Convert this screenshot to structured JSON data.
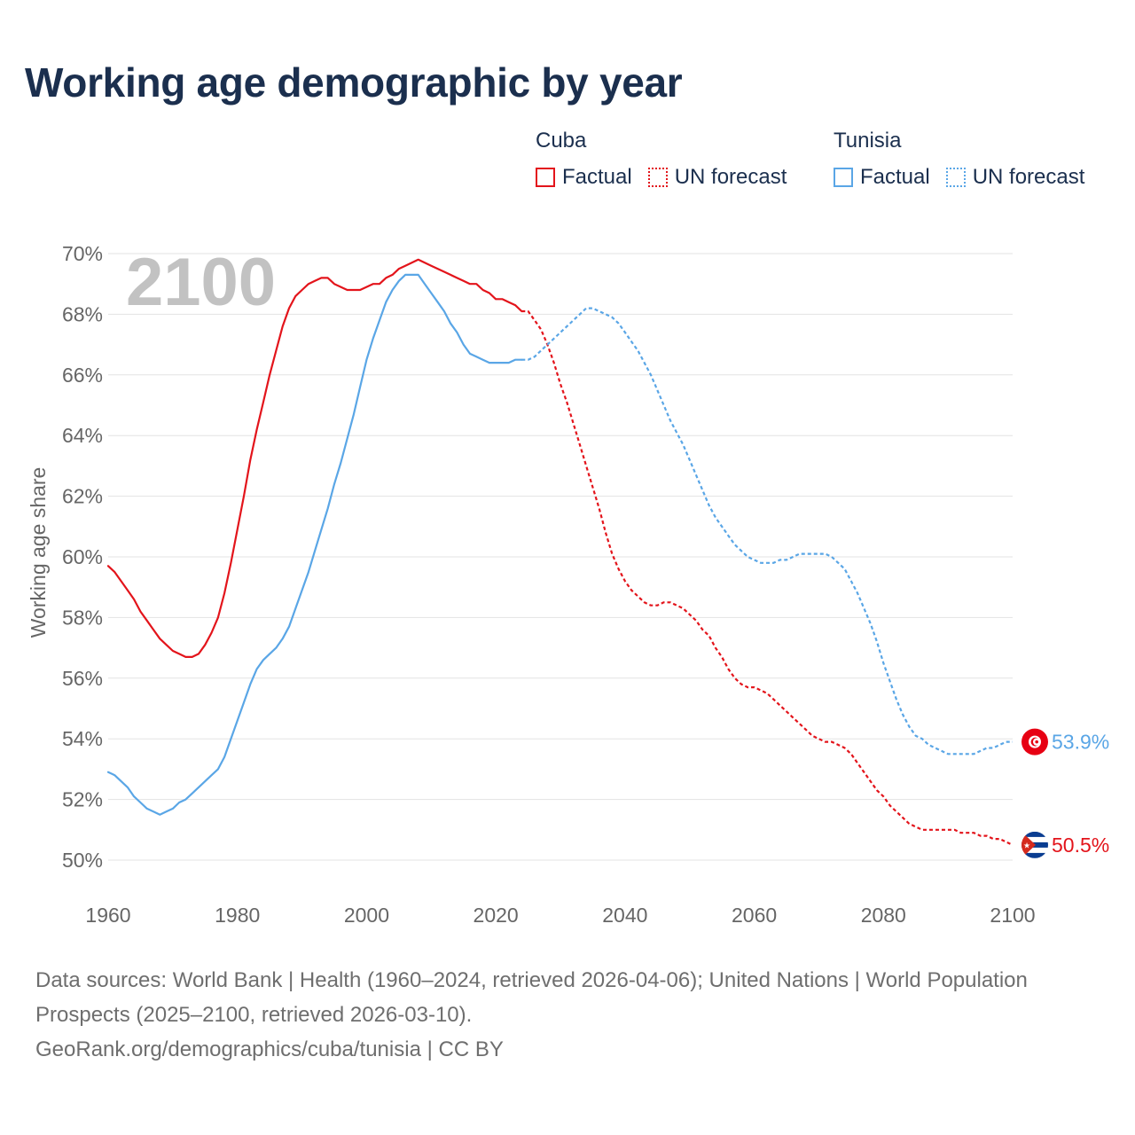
{
  "title": "Working age demographic by year",
  "legend": {
    "groups": [
      {
        "country": "Cuba",
        "color": "#e3141b",
        "factual": "Factual",
        "forecast": "UN forecast"
      },
      {
        "country": "Tunisia",
        "color": "#5aa6e6",
        "factual": "Factual",
        "forecast": "UN forecast"
      }
    ]
  },
  "year_watermark": "2100",
  "footer": {
    "line1": "Data sources: World Bank | Health (1960–2024, retrieved 2026-04-06); United Nations | World Population Prospects (2025–2100, retrieved 2026-03-10).",
    "line2": "GeoRank.org/demographics/cuba/tunisia | CC BY"
  },
  "chart_data": {
    "type": "line",
    "title": "Working age demographic by year",
    "xlabel": "",
    "ylabel": "Working age share",
    "xlim": [
      1960,
      2100
    ],
    "ylim": [
      50,
      70
    ],
    "x_ticks": [
      1960,
      1980,
      2000,
      2020,
      2040,
      2060,
      2080,
      2100
    ],
    "y_ticks": [
      50,
      52,
      54,
      56,
      58,
      60,
      62,
      64,
      66,
      68,
      70
    ],
    "y_tick_labels": [
      "50%",
      "52%",
      "54%",
      "56%",
      "58%",
      "60%",
      "62%",
      "64%",
      "66%",
      "68%",
      "70%"
    ],
    "grid": true,
    "series": [
      {
        "name": "Cuba",
        "segment": "Factual",
        "color": "#e3141b",
        "style": "solid",
        "points": [
          [
            1960,
            59.7
          ],
          [
            1961,
            59.5
          ],
          [
            1962,
            59.2
          ],
          [
            1963,
            58.9
          ],
          [
            1964,
            58.6
          ],
          [
            1965,
            58.2
          ],
          [
            1966,
            57.9
          ],
          [
            1967,
            57.6
          ],
          [
            1968,
            57.3
          ],
          [
            1969,
            57.1
          ],
          [
            1970,
            56.9
          ],
          [
            1971,
            56.8
          ],
          [
            1972,
            56.7
          ],
          [
            1973,
            56.7
          ],
          [
            1974,
            56.8
          ],
          [
            1975,
            57.1
          ],
          [
            1976,
            57.5
          ],
          [
            1977,
            58.0
          ],
          [
            1978,
            58.8
          ],
          [
            1979,
            59.8
          ],
          [
            1980,
            60.9
          ],
          [
            1981,
            62.0
          ],
          [
            1982,
            63.2
          ],
          [
            1983,
            64.2
          ],
          [
            1984,
            65.1
          ],
          [
            1985,
            66.0
          ],
          [
            1986,
            66.8
          ],
          [
            1987,
            67.6
          ],
          [
            1988,
            68.2
          ],
          [
            1989,
            68.6
          ],
          [
            1990,
            68.8
          ],
          [
            1991,
            69.0
          ],
          [
            1992,
            69.1
          ],
          [
            1993,
            69.2
          ],
          [
            1994,
            69.2
          ],
          [
            1995,
            69.0
          ],
          [
            1996,
            68.9
          ],
          [
            1997,
            68.8
          ],
          [
            1998,
            68.8
          ],
          [
            1999,
            68.8
          ],
          [
            2000,
            68.9
          ],
          [
            2001,
            69.0
          ],
          [
            2002,
            69.0
          ],
          [
            2003,
            69.2
          ],
          [
            2004,
            69.3
          ],
          [
            2005,
            69.5
          ],
          [
            2006,
            69.6
          ],
          [
            2007,
            69.7
          ],
          [
            2008,
            69.8
          ],
          [
            2009,
            69.7
          ],
          [
            2010,
            69.6
          ],
          [
            2011,
            69.5
          ],
          [
            2012,
            69.4
          ],
          [
            2013,
            69.3
          ],
          [
            2014,
            69.2
          ],
          [
            2015,
            69.1
          ],
          [
            2016,
            69.0
          ],
          [
            2017,
            69.0
          ],
          [
            2018,
            68.8
          ],
          [
            2019,
            68.7
          ],
          [
            2020,
            68.5
          ],
          [
            2021,
            68.5
          ],
          [
            2022,
            68.4
          ],
          [
            2023,
            68.3
          ],
          [
            2024,
            68.1
          ]
        ]
      },
      {
        "name": "Cuba",
        "segment": "UN forecast",
        "color": "#e3141b",
        "style": "dotted",
        "points": [
          [
            2024,
            68.1
          ],
          [
            2025,
            68.1
          ],
          [
            2026,
            67.8
          ],
          [
            2027,
            67.5
          ],
          [
            2028,
            67.0
          ],
          [
            2029,
            66.4
          ],
          [
            2030,
            65.7
          ],
          [
            2031,
            65.1
          ],
          [
            2032,
            64.4
          ],
          [
            2033,
            63.7
          ],
          [
            2034,
            63.0
          ],
          [
            2035,
            62.3
          ],
          [
            2036,
            61.6
          ],
          [
            2037,
            60.8
          ],
          [
            2038,
            60.1
          ],
          [
            2039,
            59.6
          ],
          [
            2040,
            59.2
          ],
          [
            2041,
            58.9
          ],
          [
            2042,
            58.7
          ],
          [
            2043,
            58.5
          ],
          [
            2044,
            58.4
          ],
          [
            2045,
            58.4
          ],
          [
            2046,
            58.5
          ],
          [
            2047,
            58.5
          ],
          [
            2048,
            58.4
          ],
          [
            2049,
            58.3
          ],
          [
            2050,
            58.1
          ],
          [
            2051,
            57.9
          ],
          [
            2052,
            57.6
          ],
          [
            2053,
            57.4
          ],
          [
            2054,
            57.0
          ],
          [
            2055,
            56.7
          ],
          [
            2056,
            56.3
          ],
          [
            2057,
            56.0
          ],
          [
            2058,
            55.8
          ],
          [
            2059,
            55.7
          ],
          [
            2060,
            55.7
          ],
          [
            2061,
            55.6
          ],
          [
            2062,
            55.5
          ],
          [
            2063,
            55.3
          ],
          [
            2064,
            55.1
          ],
          [
            2065,
            54.9
          ],
          [
            2066,
            54.7
          ],
          [
            2067,
            54.5
          ],
          [
            2068,
            54.3
          ],
          [
            2069,
            54.1
          ],
          [
            2070,
            54.0
          ],
          [
            2071,
            53.9
          ],
          [
            2072,
            53.9
          ],
          [
            2073,
            53.8
          ],
          [
            2074,
            53.7
          ],
          [
            2075,
            53.5
          ],
          [
            2076,
            53.2
          ],
          [
            2077,
            52.9
          ],
          [
            2078,
            52.6
          ],
          [
            2079,
            52.3
          ],
          [
            2080,
            52.1
          ],
          [
            2081,
            51.8
          ],
          [
            2082,
            51.6
          ],
          [
            2083,
            51.4
          ],
          [
            2084,
            51.2
          ],
          [
            2085,
            51.1
          ],
          [
            2086,
            51.0
          ],
          [
            2087,
            51.0
          ],
          [
            2088,
            51.0
          ],
          [
            2089,
            51.0
          ],
          [
            2090,
            51.0
          ],
          [
            2091,
            51.0
          ],
          [
            2092,
            50.9
          ],
          [
            2093,
            50.9
          ],
          [
            2094,
            50.9
          ],
          [
            2095,
            50.8
          ],
          [
            2096,
            50.8
          ],
          [
            2097,
            50.7
          ],
          [
            2098,
            50.7
          ],
          [
            2099,
            50.6
          ],
          [
            2100,
            50.5
          ]
        ]
      },
      {
        "name": "Tunisia",
        "segment": "Factual",
        "color": "#5aa6e6",
        "style": "solid",
        "points": [
          [
            1960,
            52.9
          ],
          [
            1961,
            52.8
          ],
          [
            1962,
            52.6
          ],
          [
            1963,
            52.4
          ],
          [
            1964,
            52.1
          ],
          [
            1965,
            51.9
          ],
          [
            1966,
            51.7
          ],
          [
            1967,
            51.6
          ],
          [
            1968,
            51.5
          ],
          [
            1969,
            51.6
          ],
          [
            1970,
            51.7
          ],
          [
            1971,
            51.9
          ],
          [
            1972,
            52.0
          ],
          [
            1973,
            52.2
          ],
          [
            1974,
            52.4
          ],
          [
            1975,
            52.6
          ],
          [
            1976,
            52.8
          ],
          [
            1977,
            53.0
          ],
          [
            1978,
            53.4
          ],
          [
            1979,
            54.0
          ],
          [
            1980,
            54.6
          ],
          [
            1981,
            55.2
          ],
          [
            1982,
            55.8
          ],
          [
            1983,
            56.3
          ],
          [
            1984,
            56.6
          ],
          [
            1985,
            56.8
          ],
          [
            1986,
            57.0
          ],
          [
            1987,
            57.3
          ],
          [
            1988,
            57.7
          ],
          [
            1989,
            58.3
          ],
          [
            1990,
            58.9
          ],
          [
            1991,
            59.5
          ],
          [
            1992,
            60.2
          ],
          [
            1993,
            60.9
          ],
          [
            1994,
            61.6
          ],
          [
            1995,
            62.4
          ],
          [
            1996,
            63.1
          ],
          [
            1997,
            63.9
          ],
          [
            1998,
            64.7
          ],
          [
            1999,
            65.6
          ],
          [
            2000,
            66.5
          ],
          [
            2001,
            67.2
          ],
          [
            2002,
            67.8
          ],
          [
            2003,
            68.4
          ],
          [
            2004,
            68.8
          ],
          [
            2005,
            69.1
          ],
          [
            2006,
            69.3
          ],
          [
            2007,
            69.3
          ],
          [
            2008,
            69.3
          ],
          [
            2009,
            69.0
          ],
          [
            2010,
            68.7
          ],
          [
            2011,
            68.4
          ],
          [
            2012,
            68.1
          ],
          [
            2013,
            67.7
          ],
          [
            2014,
            67.4
          ],
          [
            2015,
            67.0
          ],
          [
            2016,
            66.7
          ],
          [
            2017,
            66.6
          ],
          [
            2018,
            66.5
          ],
          [
            2019,
            66.4
          ],
          [
            2020,
            66.4
          ],
          [
            2021,
            66.4
          ],
          [
            2022,
            66.4
          ],
          [
            2023,
            66.5
          ],
          [
            2024,
            66.5
          ]
        ]
      },
      {
        "name": "Tunisia",
        "segment": "UN forecast",
        "color": "#5aa6e6",
        "style": "dotted",
        "points": [
          [
            2024,
            66.5
          ],
          [
            2025,
            66.5
          ],
          [
            2026,
            66.6
          ],
          [
            2027,
            66.8
          ],
          [
            2028,
            67.0
          ],
          [
            2029,
            67.2
          ],
          [
            2030,
            67.4
          ],
          [
            2031,
            67.6
          ],
          [
            2032,
            67.8
          ],
          [
            2033,
            68.0
          ],
          [
            2034,
            68.2
          ],
          [
            2035,
            68.2
          ],
          [
            2036,
            68.1
          ],
          [
            2037,
            68.0
          ],
          [
            2038,
            67.9
          ],
          [
            2039,
            67.7
          ],
          [
            2040,
            67.4
          ],
          [
            2041,
            67.1
          ],
          [
            2042,
            66.8
          ],
          [
            2043,
            66.4
          ],
          [
            2044,
            66.0
          ],
          [
            2045,
            65.5
          ],
          [
            2046,
            65.0
          ],
          [
            2047,
            64.5
          ],
          [
            2048,
            64.1
          ],
          [
            2049,
            63.7
          ],
          [
            2050,
            63.2
          ],
          [
            2051,
            62.7
          ],
          [
            2052,
            62.2
          ],
          [
            2053,
            61.7
          ],
          [
            2054,
            61.3
          ],
          [
            2055,
            61.0
          ],
          [
            2056,
            60.7
          ],
          [
            2057,
            60.4
          ],
          [
            2058,
            60.2
          ],
          [
            2059,
            60.0
          ],
          [
            2060,
            59.9
          ],
          [
            2061,
            59.8
          ],
          [
            2062,
            59.8
          ],
          [
            2063,
            59.8
          ],
          [
            2064,
            59.9
          ],
          [
            2065,
            59.9
          ],
          [
            2066,
            60.0
          ],
          [
            2067,
            60.1
          ],
          [
            2068,
            60.1
          ],
          [
            2069,
            60.1
          ],
          [
            2070,
            60.1
          ],
          [
            2071,
            60.1
          ],
          [
            2072,
            60.0
          ],
          [
            2073,
            59.8
          ],
          [
            2074,
            59.6
          ],
          [
            2075,
            59.2
          ],
          [
            2076,
            58.8
          ],
          [
            2077,
            58.3
          ],
          [
            2078,
            57.8
          ],
          [
            2079,
            57.2
          ],
          [
            2080,
            56.5
          ],
          [
            2081,
            55.9
          ],
          [
            2082,
            55.3
          ],
          [
            2083,
            54.8
          ],
          [
            2084,
            54.4
          ],
          [
            2085,
            54.1
          ],
          [
            2086,
            54.0
          ],
          [
            2087,
            53.8
          ],
          [
            2088,
            53.7
          ],
          [
            2089,
            53.6
          ],
          [
            2090,
            53.5
          ],
          [
            2091,
            53.5
          ],
          [
            2092,
            53.5
          ],
          [
            2093,
            53.5
          ],
          [
            2094,
            53.5
          ],
          [
            2095,
            53.6
          ],
          [
            2096,
            53.7
          ],
          [
            2097,
            53.7
          ],
          [
            2098,
            53.8
          ],
          [
            2099,
            53.9
          ],
          [
            2100,
            53.9
          ]
        ]
      }
    ],
    "end_labels": [
      {
        "country": "Tunisia",
        "value": 53.9,
        "text": "53.9%",
        "color": "#5aa6e6",
        "flag": "tunisia-flag-icon"
      },
      {
        "country": "Cuba",
        "value": 50.5,
        "text": "50.5%",
        "color": "#e3141b",
        "flag": "cuba-flag-icon"
      }
    ]
  }
}
